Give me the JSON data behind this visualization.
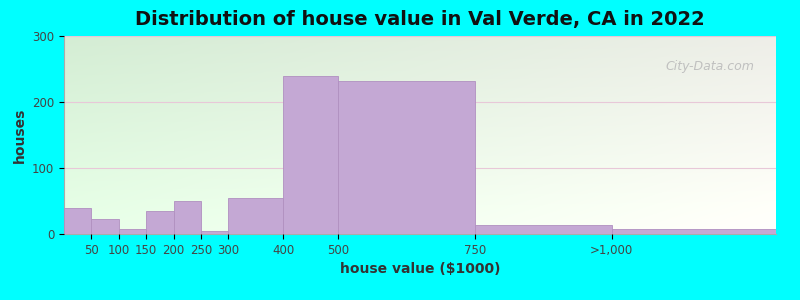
{
  "title": "Distribution of house value in Val Verde, CA in 2022",
  "xlabel": "house value ($1000)",
  "ylabel": "houses",
  "bar_color": "#c4a8d4",
  "bar_edge_color": "#b090c0",
  "background_outer": "#00ffff",
  "ylim": [
    0,
    300
  ],
  "yticks": [
    0,
    100,
    200,
    300
  ],
  "xlim": [
    0,
    1300
  ],
  "bar_lefts": [
    0,
    50,
    100,
    150,
    200,
    250,
    300,
    400,
    500,
    750,
    1000
  ],
  "bar_rights": [
    50,
    100,
    150,
    200,
    250,
    300,
    400,
    500,
    750,
    1000,
    1300
  ],
  "bar_heights": [
    40,
    22,
    7,
    35,
    50,
    5,
    55,
    240,
    232,
    13,
    8
  ],
  "xtick_labels": [
    "50",
    "100",
    "150",
    "200",
    "250",
    "300",
    "400",
    "500",
    "750",
    ">1,000"
  ],
  "xtick_positions": [
    50,
    100,
    150,
    200,
    250,
    300,
    400,
    500,
    750,
    1000
  ],
  "watermark": "City-Data.com",
  "title_fontsize": 14,
  "axis_label_fontsize": 10,
  "tick_fontsize": 8.5,
  "grid_color": "#e8c8d8",
  "grid_linewidth": 0.8
}
